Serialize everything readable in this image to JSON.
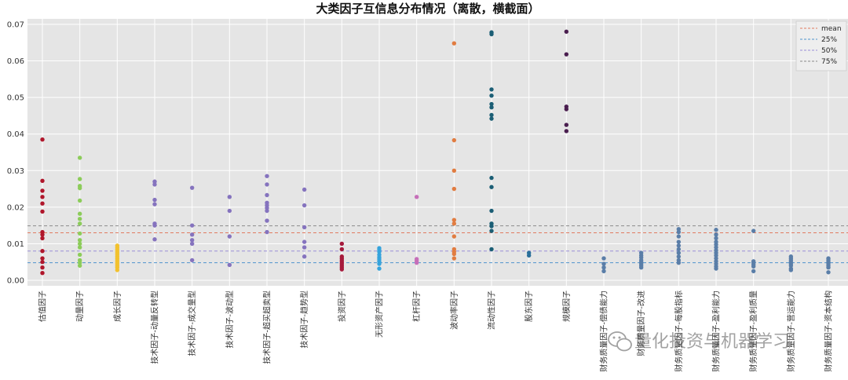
{
  "chart_data": {
    "type": "scatter",
    "title": "大类因子互信息分布情况（离散，横截面）",
    "xlabel": "",
    "ylabel": "",
    "ylim": [
      -0.0015,
      0.0715
    ],
    "yticks": [
      "0.00",
      "0.01",
      "0.02",
      "0.03",
      "0.04",
      "0.05",
      "0.06",
      "0.07"
    ],
    "ytick_values": [
      0,
      0.01,
      0.02,
      0.03,
      0.04,
      0.05,
      0.06,
      0.07
    ],
    "grid": true,
    "legend_position": "top-right",
    "background": "#e5e5e5",
    "categories": [
      "估值因子",
      "动量因子",
      "成长因子",
      "技术因子-动量反转型",
      "技术因子-成交量型",
      "技术因子-波动型",
      "技术因子-超买超卖型",
      "技术因子-趋势型",
      "投资因子",
      "无形资产因子",
      "杠杆因子",
      "波动率因子",
      "流动性因子",
      "股东因子",
      "规模因子",
      "财务质量因子-偿债能力",
      "财务质量因子-改进",
      "财务质量因子-每股指标",
      "财务质量因子-盈利能力",
      "财务质量因子-盈利质量",
      "财务质量因子-营运能力",
      "财务质量因子-资本结构"
    ],
    "colors": [
      "#b0162b",
      "#8ccc5a",
      "#f2c12e",
      "#8573be",
      "#8573be",
      "#8573be",
      "#8573be",
      "#8573be",
      "#a61a3c",
      "#35a3dc",
      "#c66fb9",
      "#e17c41",
      "#1b5e75",
      "#2a6f9a",
      "#4a1e4f",
      "#5a7ea8",
      "#5a7ea8",
      "#5a7ea8",
      "#5a7ea8",
      "#5a7ea8",
      "#5a7ea8",
      "#5a7ea8"
    ],
    "values": [
      [
        0.0385,
        0.0272,
        0.0245,
        0.0228,
        0.021,
        0.0188,
        0.0132,
        0.0125,
        0.0115,
        0.008,
        0.006,
        0.005,
        0.0035,
        0.002
      ],
      [
        0.0335,
        0.0277,
        0.0258,
        0.0252,
        0.0218,
        0.0182,
        0.0168,
        0.0155,
        0.0128,
        0.011,
        0.01,
        0.009,
        0.007,
        0.0055,
        0.0048,
        0.004
      ],
      [
        0.0095,
        0.009,
        0.0085,
        0.008,
        0.0075,
        0.007,
        0.0065,
        0.006,
        0.0055,
        0.005,
        0.0045,
        0.004,
        0.0035,
        0.0028
      ],
      [
        0.027,
        0.0262,
        0.022,
        0.0208,
        0.0155,
        0.015,
        0.0112
      ],
      [
        0.0253,
        0.015,
        0.0125,
        0.011,
        0.01,
        0.0055
      ],
      [
        0.0228,
        0.019,
        0.012,
        0.0042
      ],
      [
        0.0285,
        0.0262,
        0.0233,
        0.0212,
        0.0205,
        0.0198,
        0.019,
        0.0163,
        0.0132
      ],
      [
        0.0248,
        0.0205,
        0.0145,
        0.0105,
        0.009,
        0.0065
      ],
      [
        0.01,
        0.0085,
        0.0065,
        0.006,
        0.0055,
        0.005,
        0.0045,
        0.004,
        0.0035,
        0.003
      ],
      [
        0.0088,
        0.0083,
        0.0078,
        0.007,
        0.0063,
        0.0058,
        0.0052,
        0.0045,
        0.0032
      ],
      [
        0.0228,
        0.0058,
        0.0053,
        0.0048
      ],
      [
        0.0648,
        0.0383,
        0.03,
        0.025,
        0.0165,
        0.0155,
        0.012,
        0.0085,
        0.0078,
        0.0072,
        0.006
      ],
      [
        0.0678,
        0.0673,
        0.0522,
        0.0505,
        0.0482,
        0.0473,
        0.0452,
        0.0442,
        0.028,
        0.0255,
        0.019,
        0.0155,
        0.0148,
        0.0135,
        0.0085
      ],
      [
        0.0075,
        0.0068
      ],
      [
        0.068,
        0.0618,
        0.0475,
        0.0468,
        0.0425,
        0.0408
      ],
      [
        0.006,
        0.0045,
        0.0035,
        0.0025
      ],
      [
        0.0075,
        0.0068,
        0.0062,
        0.0055,
        0.005,
        0.0045,
        0.004,
        0.0035
      ],
      [
        0.014,
        0.0132,
        0.012,
        0.0105,
        0.0095,
        0.0085,
        0.0075,
        0.0065,
        0.0055,
        0.0048
      ],
      [
        0.0138,
        0.0125,
        0.0115,
        0.0105,
        0.0098,
        0.009,
        0.0082,
        0.0075,
        0.0068,
        0.006,
        0.0052,
        0.0045,
        0.0038,
        0.0032
      ],
      [
        0.0135,
        0.0052,
        0.0048,
        0.0043,
        0.0038,
        0.0025
      ],
      [
        0.0065,
        0.006,
        0.0055,
        0.005,
        0.0045,
        0.004,
        0.0032,
        0.0028
      ],
      [
        0.006,
        0.0055,
        0.005,
        0.0045,
        0.004,
        0.0035,
        0.0022
      ]
    ],
    "reference_lines": [
      {
        "name": "mean",
        "value": 0.013,
        "color": "#e07a5f"
      },
      {
        "name": "25%",
        "value": 0.0048,
        "color": "#4f94cd"
      },
      {
        "name": "50%",
        "value": 0.008,
        "color": "#9b8fd6"
      },
      {
        "name": "75%",
        "value": 0.0149,
        "color": "#8b8b8b"
      }
    ]
  },
  "watermark": {
    "text": "量化投资与机器学习",
    "icon": "wechat-icon"
  }
}
